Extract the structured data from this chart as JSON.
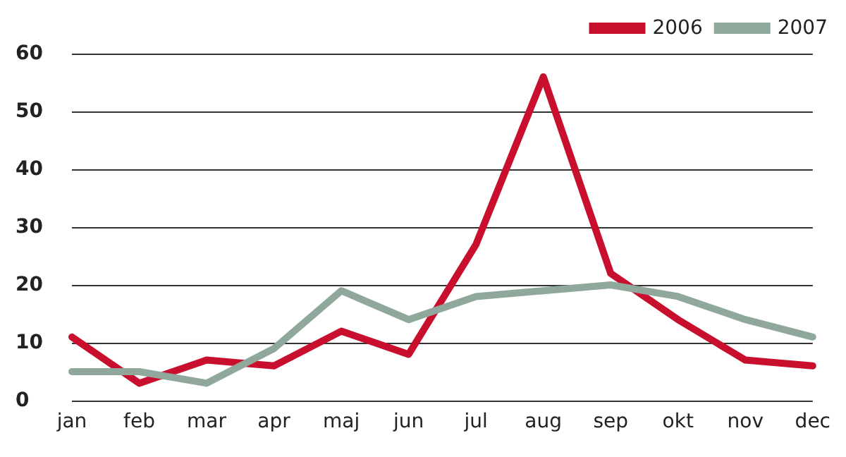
{
  "chart_data": {
    "type": "line",
    "categories": [
      "jan",
      "feb",
      "mar",
      "apr",
      "maj",
      "jun",
      "jul",
      "aug",
      "sep",
      "okt",
      "nov",
      "dec"
    ],
    "series": [
      {
        "name": "2006",
        "color": "#c8102e",
        "values": [
          11,
          3,
          7,
          6,
          12,
          8,
          27,
          56,
          22,
          14,
          7,
          6
        ]
      },
      {
        "name": "2007",
        "color": "#8fa89b",
        "values": [
          5,
          5,
          3,
          9,
          19,
          14,
          18,
          19,
          20,
          18,
          14,
          11
        ]
      }
    ],
    "ylim": [
      0,
      60
    ],
    "yticks": [
      0,
      10,
      20,
      30,
      40,
      50,
      60
    ],
    "grid": "y",
    "legend": "top right",
    "marker": "none",
    "line_style": "solid"
  }
}
